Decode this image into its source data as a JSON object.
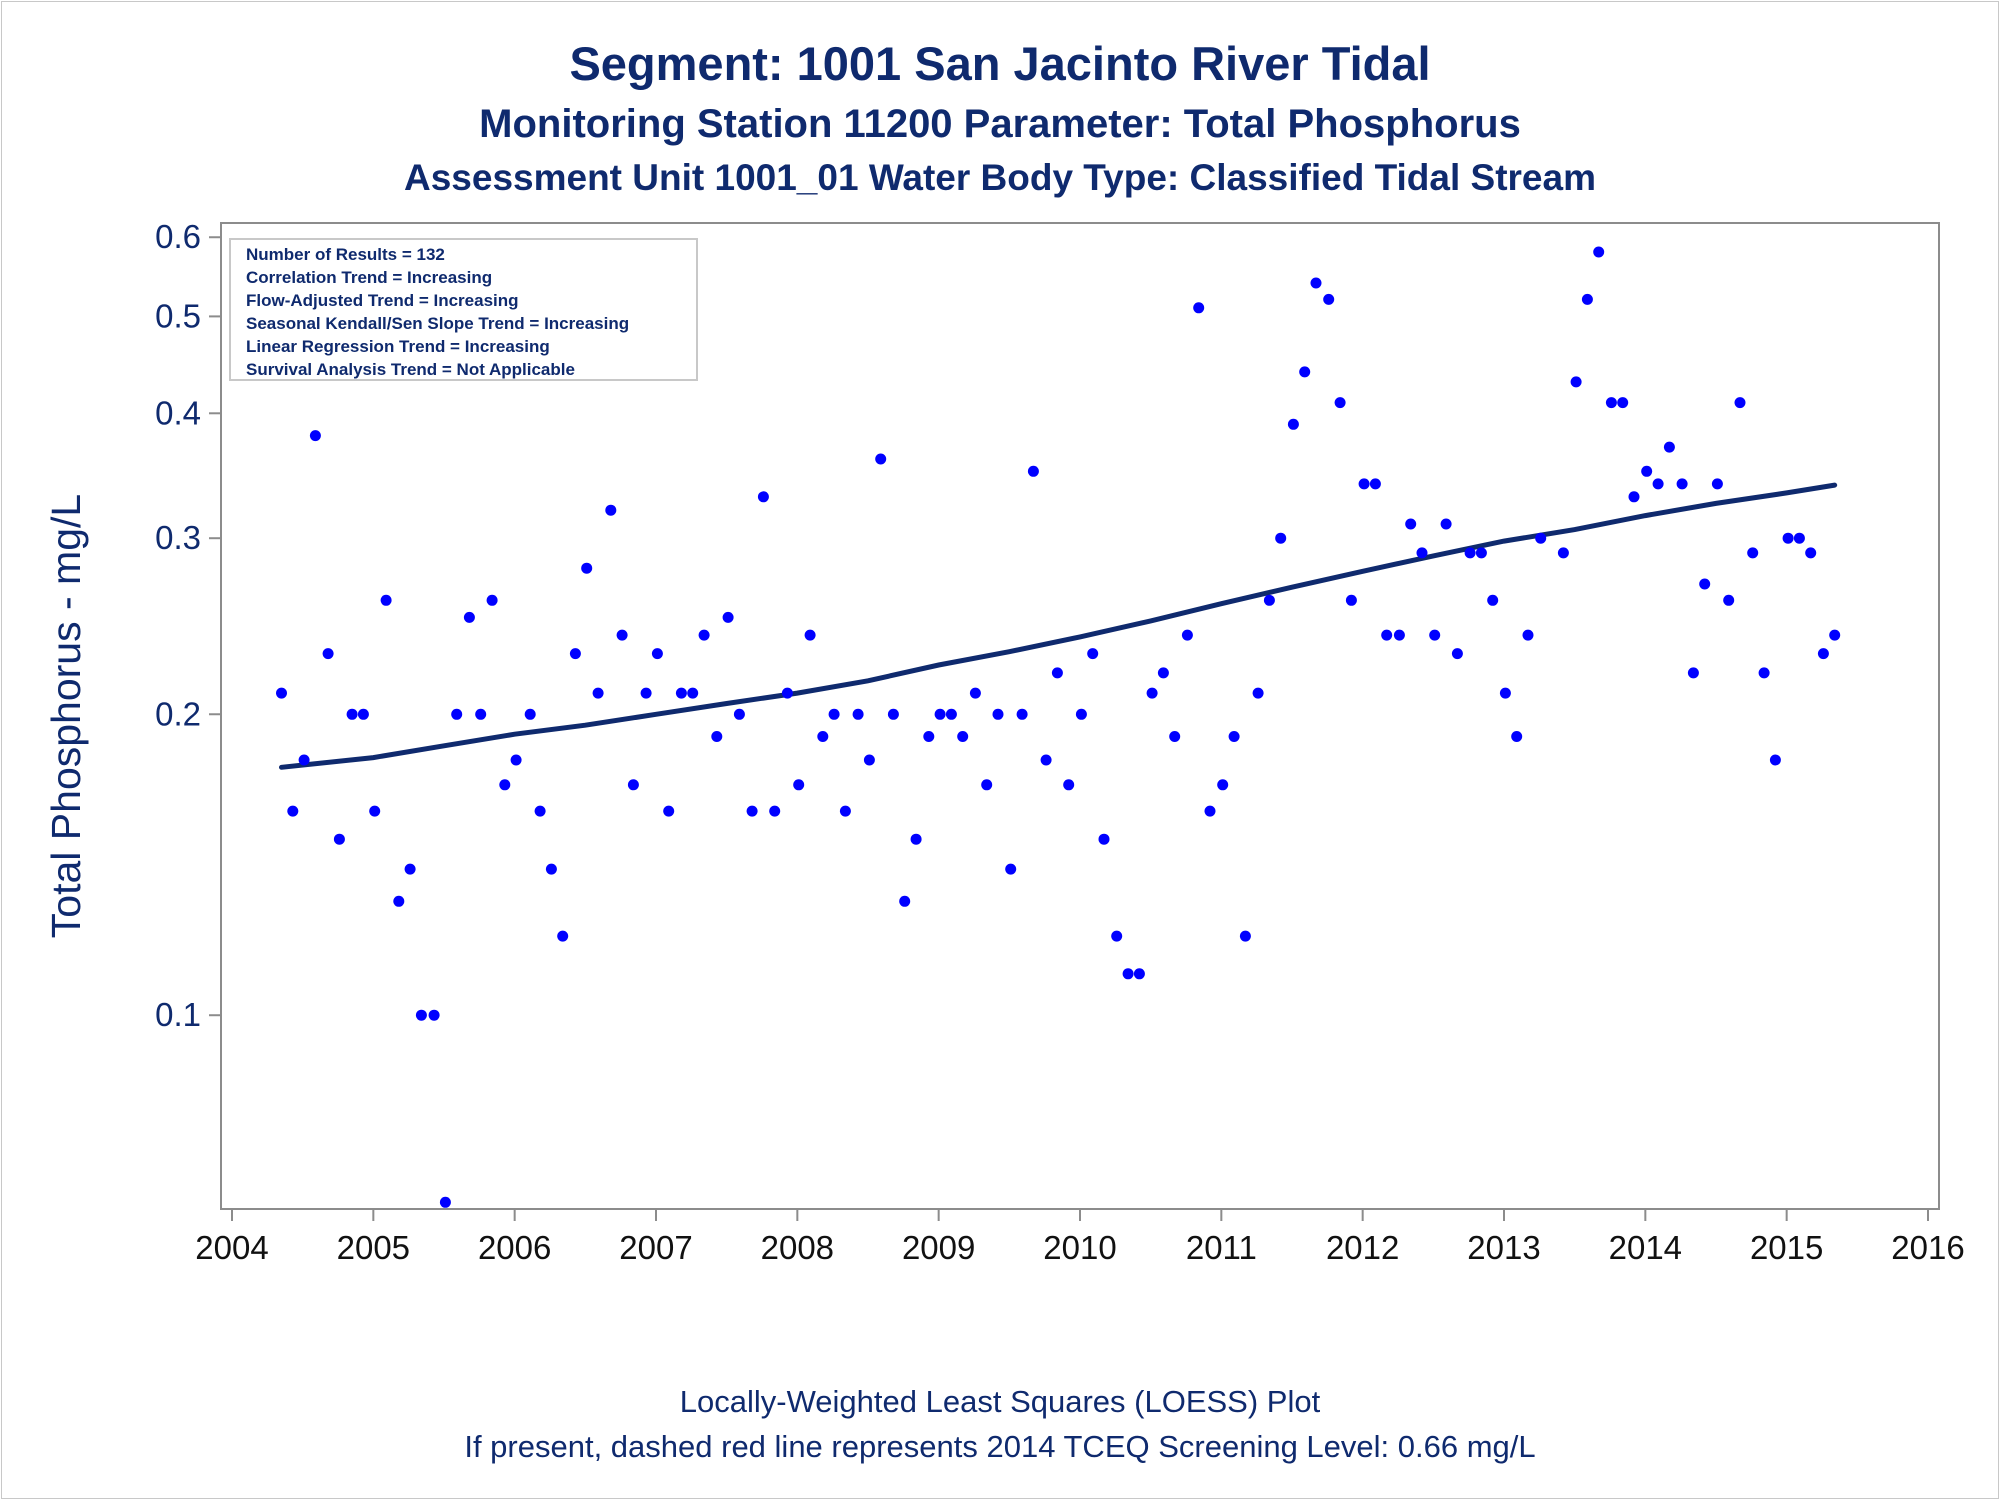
{
  "titles": {
    "line1": "Segment: 1001  San Jacinto River Tidal",
    "line2": "Monitoring Station 11200 Parameter: Total Phosphorus",
    "line3": "Assessment Unit 1001_01   Water Body Type: Classified Tidal Stream"
  },
  "footnotes": {
    "line1": "Locally-Weighted Least Squares (LOESS) Plot",
    "line2": "If present, dashed red line represents 2014 TCEQ Screening Level: 0.66 mg/L"
  },
  "stats_box": [
    "Number of Results = 132",
    "Correlation Trend = Increasing",
    "Flow-Adjusted Trend = Increasing",
    "Seasonal Kendall/Sen Slope Trend = Increasing",
    "Linear Regression Trend = Increasing",
    "Survival Analysis Trend = Not Applicable"
  ],
  "colors": {
    "points": "#0000ff",
    "trend_line": "#0f2a6e",
    "text": "#0f2a6e",
    "axis": "#8c8c8c"
  },
  "chart_data": {
    "type": "scatter",
    "ylabel": "Total Phosphorus - mg/L",
    "xlabel": "",
    "y_scale": "log",
    "xlim": [
      2004,
      2016
    ],
    "ylim": [
      0.064,
      0.62
    ],
    "x_ticks": [
      "2004",
      "2005",
      "2006",
      "2007",
      "2008",
      "2009",
      "2010",
      "2011",
      "2012",
      "2013",
      "2014",
      "2015",
      "2016"
    ],
    "y_ticks": [
      {
        "value": 0.1,
        "label": "0.1"
      },
      {
        "value": 0.2,
        "label": "0.2"
      },
      {
        "value": 0.3,
        "label": "0.3"
      },
      {
        "value": 0.4,
        "label": "0.4"
      },
      {
        "value": 0.5,
        "label": "0.5"
      },
      {
        "value": 0.6,
        "label": "0.6"
      }
    ],
    "grid": false,
    "legend_placement": "top-left",
    "series": [
      {
        "type": "scatter",
        "points": [
          [
            2004.35,
            0.21
          ],
          [
            2004.43,
            0.16
          ],
          [
            2004.51,
            0.18
          ],
          [
            2004.59,
            0.38
          ],
          [
            2004.68,
            0.23
          ],
          [
            2004.76,
            0.15
          ],
          [
            2004.85,
            0.2
          ],
          [
            2004.93,
            0.2
          ],
          [
            2005.01,
            0.16
          ],
          [
            2005.09,
            0.26
          ],
          [
            2005.18,
            0.13
          ],
          [
            2005.26,
            0.14
          ],
          [
            2005.34,
            0.1
          ],
          [
            2005.43,
            0.1
          ],
          [
            2005.51,
            0.065
          ],
          [
            2005.59,
            0.2
          ],
          [
            2005.68,
            0.25
          ],
          [
            2005.76,
            0.2
          ],
          [
            2005.84,
            0.26
          ],
          [
            2005.93,
            0.17
          ],
          [
            2006.01,
            0.18
          ],
          [
            2006.11,
            0.2
          ],
          [
            2006.18,
            0.16
          ],
          [
            2006.26,
            0.14
          ],
          [
            2006.34,
            0.12
          ],
          [
            2006.43,
            0.23
          ],
          [
            2006.51,
            0.28
          ],
          [
            2006.59,
            0.21
          ],
          [
            2006.68,
            0.32
          ],
          [
            2006.76,
            0.24
          ],
          [
            2006.84,
            0.17
          ],
          [
            2006.93,
            0.21
          ],
          [
            2007.01,
            0.23
          ],
          [
            2007.09,
            0.16
          ],
          [
            2007.18,
            0.21
          ],
          [
            2007.26,
            0.21
          ],
          [
            2007.34,
            0.24
          ],
          [
            2007.43,
            0.19
          ],
          [
            2007.51,
            0.25
          ],
          [
            2007.59,
            0.2
          ],
          [
            2007.68,
            0.16
          ],
          [
            2007.76,
            0.33
          ],
          [
            2007.84,
            0.16
          ],
          [
            2007.93,
            0.21
          ],
          [
            2008.01,
            0.17
          ],
          [
            2008.09,
            0.24
          ],
          [
            2008.18,
            0.19
          ],
          [
            2008.26,
            0.2
          ],
          [
            2008.34,
            0.16
          ],
          [
            2008.43,
            0.2
          ],
          [
            2008.51,
            0.18
          ],
          [
            2008.59,
            0.36
          ],
          [
            2008.68,
            0.2
          ],
          [
            2008.76,
            0.13
          ],
          [
            2008.84,
            0.15
          ],
          [
            2008.93,
            0.19
          ],
          [
            2009.01,
            0.2
          ],
          [
            2009.09,
            0.2
          ],
          [
            2009.17,
            0.19
          ],
          [
            2009.26,
            0.21
          ],
          [
            2009.34,
            0.17
          ],
          [
            2009.42,
            0.2
          ],
          [
            2009.51,
            0.14
          ],
          [
            2009.59,
            0.2
          ],
          [
            2009.67,
            0.35
          ],
          [
            2009.76,
            0.18
          ],
          [
            2009.84,
            0.22
          ],
          [
            2009.92,
            0.17
          ],
          [
            2010.01,
            0.2
          ],
          [
            2010.09,
            0.23
          ],
          [
            2010.17,
            0.15
          ],
          [
            2010.26,
            0.12
          ],
          [
            2010.34,
            0.11
          ],
          [
            2010.42,
            0.11
          ],
          [
            2010.51,
            0.21
          ],
          [
            2010.59,
            0.22
          ],
          [
            2010.67,
            0.19
          ],
          [
            2010.76,
            0.24
          ],
          [
            2010.84,
            0.51
          ],
          [
            2010.92,
            0.16
          ],
          [
            2011.01,
            0.17
          ],
          [
            2011.09,
            0.19
          ],
          [
            2011.17,
            0.12
          ],
          [
            2011.26,
            0.21
          ],
          [
            2011.34,
            0.26
          ],
          [
            2011.42,
            0.3
          ],
          [
            2011.51,
            0.39
          ],
          [
            2011.59,
            0.44
          ],
          [
            2011.67,
            0.54
          ],
          [
            2011.76,
            0.52
          ],
          [
            2011.84,
            0.41
          ],
          [
            2011.92,
            0.26
          ],
          [
            2012.01,
            0.34
          ],
          [
            2012.09,
            0.34
          ],
          [
            2012.17,
            0.24
          ],
          [
            2012.26,
            0.24
          ],
          [
            2012.34,
            0.31
          ],
          [
            2012.42,
            0.29
          ],
          [
            2012.51,
            0.24
          ],
          [
            2012.59,
            0.31
          ],
          [
            2012.67,
            0.23
          ],
          [
            2012.76,
            0.29
          ],
          [
            2012.84,
            0.29
          ],
          [
            2012.92,
            0.26
          ],
          [
            2013.01,
            0.21
          ],
          [
            2013.09,
            0.19
          ],
          [
            2013.17,
            0.24
          ],
          [
            2013.26,
            0.3
          ],
          [
            2013.42,
            0.29
          ],
          [
            2013.51,
            0.43
          ],
          [
            2013.59,
            0.52
          ],
          [
            2013.67,
            0.58
          ],
          [
            2013.76,
            0.41
          ],
          [
            2013.84,
            0.41
          ],
          [
            2013.92,
            0.33
          ],
          [
            2014.01,
            0.35
          ],
          [
            2014.09,
            0.34
          ],
          [
            2014.17,
            0.37
          ],
          [
            2014.26,
            0.34
          ],
          [
            2014.34,
            0.22
          ],
          [
            2014.42,
            0.27
          ],
          [
            2014.51,
            0.34
          ],
          [
            2014.59,
            0.26
          ],
          [
            2014.67,
            0.41
          ],
          [
            2014.76,
            0.29
          ],
          [
            2014.84,
            0.22
          ],
          [
            2014.92,
            0.18
          ],
          [
            2015.01,
            0.3
          ],
          [
            2015.09,
            0.3
          ],
          [
            2015.17,
            0.29
          ],
          [
            2015.26,
            0.23
          ],
          [
            2015.34,
            0.24
          ]
        ]
      },
      {
        "type": "line",
        "points": [
          [
            2004.35,
            0.177
          ],
          [
            2005.0,
            0.181
          ],
          [
            2005.5,
            0.186
          ],
          [
            2006.0,
            0.191
          ],
          [
            2006.5,
            0.195
          ],
          [
            2007.0,
            0.2
          ],
          [
            2007.5,
            0.205
          ],
          [
            2008.0,
            0.21
          ],
          [
            2008.5,
            0.216
          ],
          [
            2009.0,
            0.224
          ],
          [
            2009.5,
            0.231
          ],
          [
            2010.0,
            0.239
          ],
          [
            2010.5,
            0.248
          ],
          [
            2011.0,
            0.258
          ],
          [
            2011.5,
            0.268
          ],
          [
            2012.0,
            0.278
          ],
          [
            2012.5,
            0.288
          ],
          [
            2013.0,
            0.298
          ],
          [
            2013.5,
            0.306
          ],
          [
            2014.0,
            0.316
          ],
          [
            2014.5,
            0.325
          ],
          [
            2015.0,
            0.333
          ],
          [
            2015.34,
            0.339
          ]
        ]
      }
    ]
  }
}
